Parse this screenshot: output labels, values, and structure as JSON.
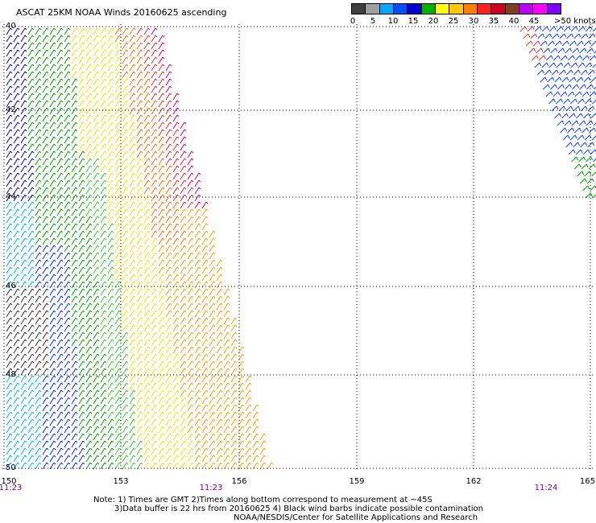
{
  "title": "ASCAT 25KM NOAA Winds 20160625 ascending",
  "legend": {
    "colors": [
      "#404040",
      "#a0a0a0",
      "#00a8ff",
      "#0050ff",
      "#0000d0",
      "#00b000",
      "#ffff00",
      "#ffc800",
      "#ff8000",
      "#ff2020",
      "#d00020",
      "#804020",
      "#c000ff",
      "#ff00ff",
      "#8000ff"
    ],
    "tick_labels": [
      "0",
      "5",
      "10",
      "15",
      "20",
      "25",
      "30",
      "35",
      "40",
      "45"
    ],
    "units": ">50 knots"
  },
  "map": {
    "lon_labels": [
      "150",
      "153",
      "156",
      "159",
      "162",
      "165"
    ],
    "lat_labels": [
      "40",
      "42",
      "44",
      "46",
      "48",
      "50"
    ],
    "time_labels": [
      "11:23",
      "11:23",
      "11:24"
    ],
    "time_color": "#800080"
  },
  "notes": {
    "line1": "Note: 1) Times are GMT 2)Times along bottom correspond to measurement at ~45S",
    "line2": "3)Data buffer is 22 hrs from 20160625 4) Black wind barbs indicate possible contamination",
    "line3": "NOAA/NESDIS/Center for Satellite Applications and Research"
  }
}
